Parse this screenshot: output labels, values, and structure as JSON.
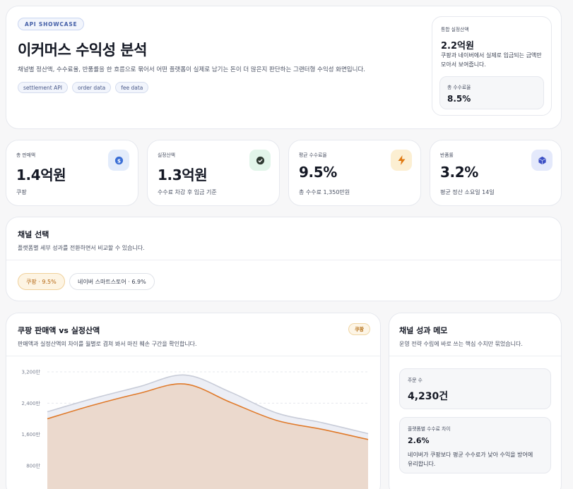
{
  "hero": {
    "tag": "API SHOWCASE",
    "title": "이커머스 수익성 분석",
    "description": "채널별 정산액, 수수료율, 반품률을 한 흐름으로 묶어서 어떤 플랫폼이 실제로 남기는 돈이 더 많은지 판단하는 그랜터형 수익성 화면입니다.",
    "chips": [
      "settlement API",
      "order data",
      "fee data"
    ],
    "summary": {
      "label": "통합 실정산액",
      "value": "2.2억원",
      "note": "쿠팡과 네이버에서 실제로 입금되는 금액만 모아서 보여줍니다.",
      "sub_label": "총 수수료율",
      "sub_value": "8.5%"
    }
  },
  "kpis": [
    {
      "label": "총 판매액",
      "value": "1.4억원",
      "note": "쿠팡",
      "icon": "dollar-coin-icon",
      "icon_bg": "#e3ecfb",
      "icon_color": "#3b6fd6"
    },
    {
      "label": "실정산액",
      "value": "1.3억원",
      "note": "수수료 차감 후 입금 기준",
      "icon": "check-circle-icon",
      "icon_bg": "#e2f5ea",
      "icon_color": "#2f3b33"
    },
    {
      "label": "평균 수수료율",
      "value": "9.5%",
      "note": "총 수수료 1,350만원",
      "icon": "lightning-icon",
      "icon_bg": "#fcefd2",
      "icon_color": "#e07a12"
    },
    {
      "label": "반품률",
      "value": "3.2%",
      "note": "평균 정산 소요일 14일",
      "icon": "box-icon",
      "icon_bg": "#e4e9fb",
      "icon_color": "#3c4fc4"
    }
  ],
  "channel": {
    "title": "채널 선택",
    "description": "플랫폼별 세부 성과를 전환하면서 비교할 수 있습니다.",
    "options": [
      "쿠팡 · 9.5%",
      "네이버 스마트스토어 · 6.9%"
    ],
    "selected_index": 0
  },
  "chart_panel": {
    "title": "쿠팡 판매액 vs 실정산액",
    "badge": "쿠팡",
    "description": "판매액과 실정산액의 차이를 월별로 겹쳐 봐서 마진 훼손 구간을 확인합니다."
  },
  "memo": {
    "title": "채널 성과 메모",
    "description": "운영 전략 수립에 바로 쓰는 핵심 수치만 묶었습니다.",
    "orders_label": "주문 수",
    "orders_value": "4,230건",
    "fee_gap_label": "플랫폼별 수수료 차이",
    "fee_gap_value": "2.6%",
    "fee_gap_note": "네이버가 쿠팡보다 평균 수수료가 낮아 수익을 방어에 유리합니다."
  },
  "colors": {
    "accent_orange": "#e07a2a",
    "sales_fill": "#eceef5",
    "settlement_fill": "#ebd9cd"
  },
  "chart_data": {
    "type": "area",
    "y_ticks": [
      "3,200만",
      "2,400만",
      "1,600만",
      "800만"
    ],
    "ylim": [
      0,
      3200
    ],
    "series": [
      {
        "key": "sales",
        "values": [
          2180,
          2520,
          2820,
          3120,
          2680,
          2150,
          1900,
          1620
        ]
      },
      {
        "key": "settlement",
        "values": [
          2000,
          2350,
          2650,
          2890,
          2420,
          1960,
          1730,
          1470
        ]
      }
    ]
  }
}
